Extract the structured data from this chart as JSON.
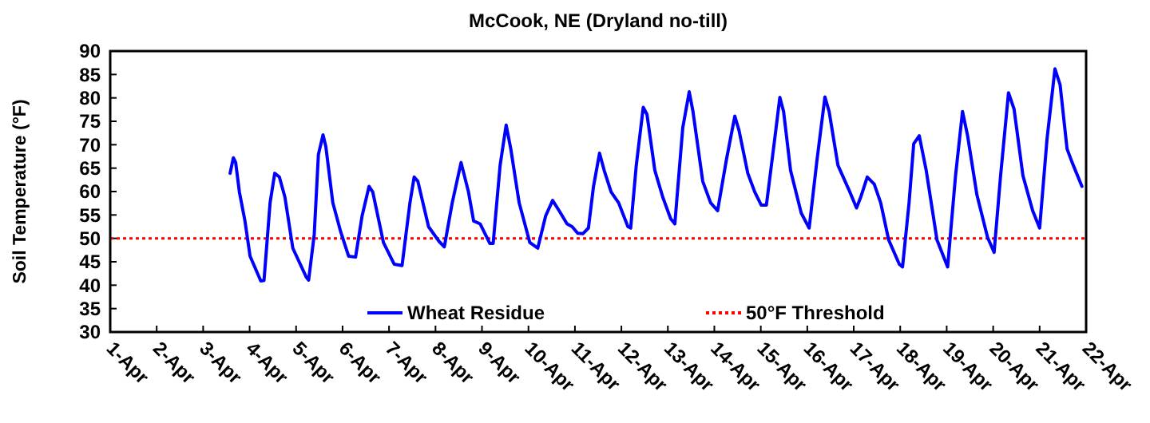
{
  "chart_data": {
    "type": "line",
    "title": "McCook, NE (Dryland no-till)",
    "ylabel": "Soil Temperature (°F)",
    "xlim": [
      "--04-01",
      "--04-22"
    ],
    "xticks": [
      {
        "value": "--04-01",
        "label": "1-Apr"
      },
      {
        "value": "--04-02",
        "label": "2-Apr"
      },
      {
        "value": "--04-03",
        "label": "3-Apr"
      },
      {
        "value": "--04-04",
        "label": "4-Apr"
      },
      {
        "value": "--04-05",
        "label": "5-Apr"
      },
      {
        "value": "--04-06",
        "label": "6-Apr"
      },
      {
        "value": "--04-07",
        "label": "7-Apr"
      },
      {
        "value": "--04-08",
        "label": "8-Apr"
      },
      {
        "value": "--04-09",
        "label": "9-Apr"
      },
      {
        "value": "--04-10",
        "label": "10-Apr"
      },
      {
        "value": "--04-11",
        "label": "11-Apr"
      },
      {
        "value": "--04-12",
        "label": "12-Apr"
      },
      {
        "value": "--04-13",
        "label": "13-Apr"
      },
      {
        "value": "--04-14",
        "label": "14-Apr"
      },
      {
        "value": "--04-15",
        "label": "15-Apr"
      },
      {
        "value": "--04-16",
        "label": "16-Apr"
      },
      {
        "value": "--04-17",
        "label": "17-Apr"
      },
      {
        "value": "--04-18",
        "label": "18-Apr"
      },
      {
        "value": "--04-19",
        "label": "19-Apr"
      },
      {
        "value": "--04-20",
        "label": "20-Apr"
      },
      {
        "value": "--04-21",
        "label": "21-Apr"
      },
      {
        "value": "--04-22",
        "label": "22-Apr"
      }
    ],
    "ylim": [
      30,
      90
    ],
    "yticks": [
      30,
      35,
      40,
      45,
      50,
      55,
      60,
      65,
      70,
      75,
      80,
      85,
      90
    ],
    "legend": "bottom",
    "grid": false,
    "marker": "none",
    "line_style": "solid",
    "ref_lines": [
      {
        "axis": "y",
        "value": 50,
        "label": "50°F Threshold",
        "color": "#ff0000",
        "line_style": "dotted"
      }
    ],
    "series": [
      {
        "name": "Wheat Residue",
        "color": "#0000ff",
        "x": [
          "--04-03T13:55",
          "--04-03T15:36",
          "--04-03T16:48",
          "--04-03T18:43",
          "--04-03T21:36",
          "--04-04T00:14",
          "--04-04T05:46",
          "--04-04T07:26",
          "--04-04T10:34",
          "--04-04T12:58",
          "--04-04T15:22",
          "--04-04T18:14",
          "--04-04T22:19",
          "--04-05T05:17",
          "--04-05T06:29",
          "--04-05T09:22",
          "--04-05T11:31",
          "--04-05T13:55",
          "--04-05T15:22",
          "--04-05T18:58",
          "--04-05T23:02",
          "--04-06T03:07",
          "--04-06T06:43",
          "--04-06T10:05",
          "--04-06T13:41",
          "--04-06T15:36",
          "--04-06T21:07",
          "--04-07T02:38",
          "--04-07T06:43",
          "--04-07T10:48",
          "--04-07T12:58",
          "--04-07T14:53",
          "--04-07T20:24",
          "--04-08T01:55",
          "--04-08T04:34",
          "--04-08T08:38",
          "--04-08T13:12",
          "--04-08T17:02",
          "--04-08T19:41",
          "--04-08T23:02",
          "--04-09T04:05",
          "--04-09T05:46",
          "--04-09T09:22",
          "--04-09T12:29",
          "--04-09T14:53",
          "--04-09T19:12",
          "--04-10T00:43",
          "--04-10T04:48",
          "--04-10T08:53",
          "--04-10T12:29",
          "--04-10T15:50",
          "--04-10T19:55",
          "--04-10T22:34",
          "--04-11T01:26",
          "--04-11T04:05",
          "--04-11T06:58",
          "--04-11T09:36",
          "--04-11T12:43",
          "--04-11T15:07",
          "--04-11T18:43",
          "--04-11T22:34",
          "--04-12T03:22",
          "--04-12T04:48",
          "--04-12T07:41",
          "--04-12T11:17",
          "--04-12T13:12",
          "--04-12T17:17",
          "--04-12T21:22",
          "--04-13T01:26",
          "--04-13T03:36",
          "--04-13T07:41",
          "--04-13T11:02",
          "--04-13T12:58",
          "--04-13T18:00",
          "--04-13T22:05",
          "--04-14T01:41",
          "--04-14T06:14",
          "--04-14T10:34",
          "--04-14T12:43",
          "--04-14T17:17",
          "--04-14T20:53",
          "--04-15T00:14",
          "--04-15T02:53",
          "--04-15T07:12",
          "--04-15T09:50",
          "--04-15T11:46",
          "--04-15T15:22",
          "--04-15T20:53",
          "--04-16T00:58",
          "--04-16T05:02",
          "--04-16T09:07",
          "--04-16T11:17",
          "--04-16T15:50",
          "--04-16T21:22",
          "--04-17T01:26",
          "--04-17T03:36",
          "--04-17T06:58",
          "--04-17T10:34",
          "--04-17T13:55",
          "--04-17T18:00",
          "--04-17T23:31",
          "--04-18T01:12",
          "--04-18T04:34",
          "--04-18T06:58",
          "--04-18T09:50",
          "--04-18T13:26",
          "--04-18T18:58",
          "--04-19T00:29",
          "--04-19T04:34",
          "--04-19T08:10",
          "--04-19T10:48",
          "--04-19T15:36",
          "--04-19T21:07",
          "--04-20T00:29",
          "--04-20T03:50",
          "--04-20T07:55",
          "--04-20T10:48",
          "--04-20T15:22",
          "--04-20T20:24",
          "--04-21T00:00",
          "--04-21T03:50",
          "--04-21T07:55",
          "--04-21T10:34",
          "--04-21T14:10",
          "--04-21T16:48",
          "--04-21T21:50"
        ],
        "values": [
          63.9,
          67.2,
          66.2,
          59.9,
          53.7,
          46.2,
          40.9,
          41,
          57.6,
          63.9,
          63.1,
          58.8,
          47.9,
          41.7,
          41.1,
          50.8,
          67.9,
          72.1,
          69.6,
          57.6,
          51.4,
          46.2,
          46,
          54.8,
          61.1,
          59.9,
          49.1,
          44.5,
          44.2,
          57.6,
          63.1,
          62.2,
          52.5,
          49.3,
          48.2,
          57.6,
          66.2,
          59.9,
          53.7,
          53.1,
          48.9,
          48.9,
          65.6,
          74.2,
          69.1,
          57.6,
          49.1,
          47.9,
          54.8,
          58.1,
          55.9,
          53.1,
          52.5,
          51.1,
          51,
          52.2,
          61.1,
          68.2,
          64.5,
          59.9,
          57.6,
          52.5,
          52.2,
          65.6,
          78,
          76.5,
          64.5,
          58.8,
          54.2,
          53.1,
          73.6,
          81.3,
          77.1,
          62.2,
          57.6,
          55.9,
          66.8,
          76.1,
          73.1,
          63.9,
          59.9,
          57.1,
          57.1,
          71.3,
          80.1,
          77.1,
          64.5,
          55.4,
          52.2,
          66.8,
          80.2,
          77.1,
          65.6,
          60.5,
          56.5,
          58.8,
          63.1,
          61.6,
          57.6,
          49.7,
          44.5,
          43.9,
          57.6,
          70.2,
          71.9,
          64.5,
          49.7,
          43.9,
          63.4,
          77.1,
          71.9,
          59.3,
          50.2,
          47,
          63.4,
          81.1,
          77.6,
          63.4,
          55.9,
          52.2,
          71.3,
          86.2,
          82.8,
          69.1,
          66.2,
          61.1
        ]
      }
    ]
  }
}
